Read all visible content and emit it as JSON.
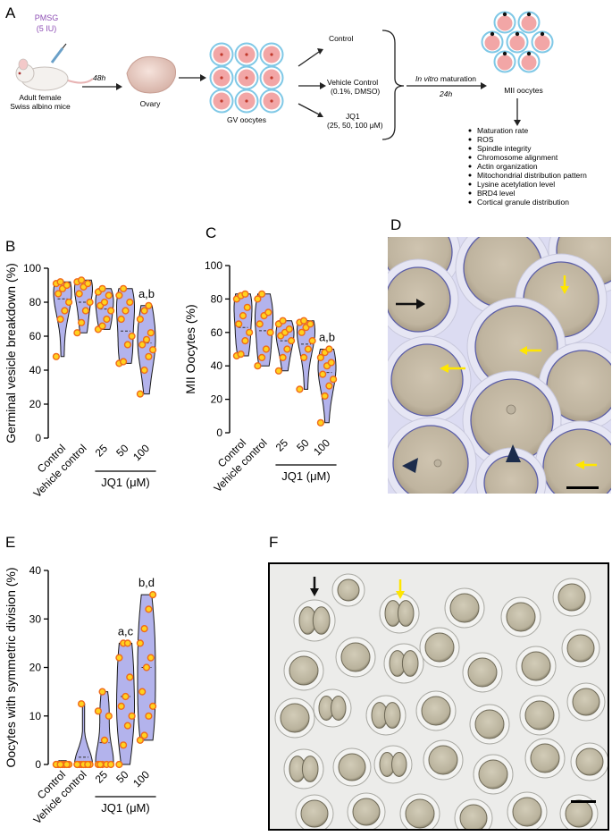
{
  "panel_a": {
    "letter": "A",
    "pmsg": "PMSG",
    "pmsg_dose": "(5 IU)",
    "mouse_label_1": "Adult female",
    "mouse_label_2": "Swiss albino mice",
    "time_1": "48h",
    "ovary": "Ovary",
    "gv": "GV oocytes",
    "groups": [
      "Control",
      "Vehicle Control",
      "(0.1%, DMSO)",
      "JQ1",
      "(25, 50, 100 μM)"
    ],
    "maturation_italic": "In vitro",
    "maturation_rest": " maturation",
    "time_2": "24h",
    "mii": "MII oocytes",
    "endpoints": [
      "Maturation rate",
      "ROS",
      "Spindle integrity",
      "Chromosome alignment",
      "Actin organization",
      "Mitochondrial distribution pattern",
      "Lysine acetylation level",
      "BRD4 level",
      "Cortical granule distribution"
    ],
    "colors": {
      "mouse_label": "#8e4fb5",
      "oocyte_fill": "#f2a6a6",
      "oocyte_ring": "#7fc8e6",
      "nucleus": "#c0392b"
    }
  },
  "chart_data": [
    {
      "panel": "B",
      "type": "violin",
      "ylabel": "Germinal vesicle breakdown (%)",
      "ylim": [
        0,
        100
      ],
      "yticks": [
        0,
        20,
        40,
        60,
        80,
        100
      ],
      "categories": [
        "Control",
        "Vehicle control",
        "25",
        "50",
        "100"
      ],
      "group_label": "JQ1 (μM)",
      "annotations": [
        {
          "category": "100",
          "text": "a,b"
        }
      ],
      "points": [
        [
          48,
          70,
          75,
          80,
          85,
          88,
          90,
          91,
          92
        ],
        [
          62,
          68,
          75,
          80,
          85,
          89,
          91,
          92,
          93
        ],
        [
          64,
          66,
          70,
          75,
          78,
          80,
          84,
          86,
          88
        ],
        [
          44,
          45,
          55,
          60,
          70,
          75,
          80,
          84,
          88
        ],
        [
          26,
          40,
          48,
          52,
          55,
          58,
          62,
          70,
          75,
          78
        ]
      ],
      "means": [
        82,
        80,
        76,
        63,
        56
      ],
      "colors": {
        "violin": "#b3b3ec",
        "point_fill": "#ffd21f",
        "point_edge": "#f06a1a"
      }
    },
    {
      "panel": "C",
      "type": "violin",
      "ylabel": "MII Oocytes (%)",
      "ylim": [
        0,
        100
      ],
      "yticks": [
        0,
        20,
        40,
        60,
        80,
        100
      ],
      "categories": [
        "Control",
        "Vehicle control",
        "25",
        "50",
        "100"
      ],
      "group_label": "JQ1 (μM)",
      "annotations": [
        {
          "category": "100",
          "text": "a,b"
        }
      ],
      "points": [
        [
          46,
          47,
          55,
          60,
          65,
          70,
          75,
          80,
          82,
          83
        ],
        [
          40,
          45,
          50,
          60,
          65,
          70,
          72,
          80,
          83
        ],
        [
          37,
          45,
          50,
          55,
          58,
          60,
          62,
          65,
          67
        ],
        [
          26,
          45,
          50,
          55,
          60,
          63,
          65,
          66,
          67
        ],
        [
          6,
          22,
          28,
          32,
          35,
          40,
          42,
          45,
          48,
          50
        ]
      ],
      "means": [
        63,
        61,
        55,
        53,
        36
      ],
      "colors": {
        "violin": "#b3b3ec",
        "point_fill": "#ffd21f",
        "point_edge": "#f06a1a"
      }
    },
    {
      "panel": "E",
      "type": "violin",
      "ylabel": "Oocytes with symmetric division (%)",
      "ylim": [
        0,
        40
      ],
      "yticks": [
        0,
        10,
        20,
        30,
        40
      ],
      "categories": [
        "Control",
        "Vehicle control",
        "25",
        "50",
        "100"
      ],
      "group_label": "JQ1 (μM)",
      "annotations": [
        {
          "category": "50",
          "text": "a,c"
        },
        {
          "category": "100",
          "text": "b,d"
        }
      ],
      "points": [
        [
          0,
          0,
          0,
          0,
          0,
          0,
          0,
          0,
          0
        ],
        [
          0,
          0,
          0,
          0,
          0,
          0,
          0,
          0,
          12.5
        ],
        [
          0,
          0,
          0,
          0,
          0,
          5,
          10,
          11,
          15
        ],
        [
          0,
          4,
          8,
          10,
          12,
          14,
          18,
          22,
          25,
          25
        ],
        [
          5,
          6,
          10,
          12,
          15,
          20,
          22,
          25,
          28,
          32,
          35
        ]
      ],
      "means": [
        0,
        1.5,
        4.5,
        14,
        20
      ],
      "colors": {
        "violin": "#b3b3ec",
        "point_fill": "#ffd21f",
        "point_edge": "#f06a1a"
      }
    }
  ],
  "panel_d": {
    "letter": "D",
    "arrow_colors": {
      "black": "#111111",
      "yellow": "#ffe600"
    }
  },
  "panel_e": {
    "letter": "E"
  },
  "panel_f": {
    "letter": "F"
  },
  "panel_b": {
    "letter": "B"
  },
  "panel_c": {
    "letter": "C"
  }
}
